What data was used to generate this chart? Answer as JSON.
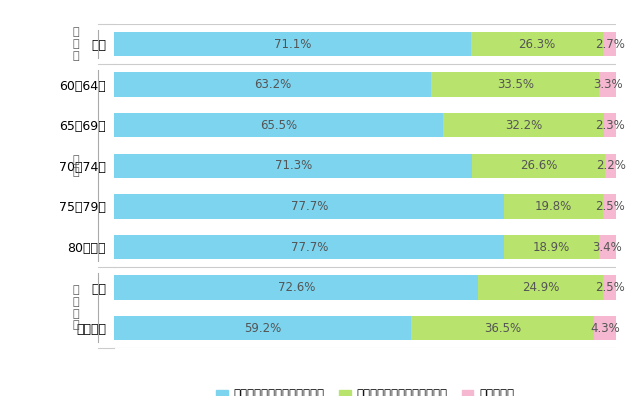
{
  "categories": [
    "全体",
    "60〖64歳",
    "65〖69歳",
    "70〖74歳",
    "75〖79歳",
    "80歳以上",
    "持家",
    "貳貸住宅"
  ],
  "values": [
    [
      71.1,
      26.3,
      2.7
    ],
    [
      63.2,
      33.5,
      3.3
    ],
    [
      65.5,
      32.2,
      2.3
    ],
    [
      71.3,
      26.6,
      2.2
    ],
    [
      77.7,
      19.8,
      2.5
    ],
    [
      77.7,
      18.9,
      3.4
    ],
    [
      72.6,
      24.9,
      2.5
    ],
    [
      59.2,
      36.5,
      4.3
    ]
  ],
  "colors": [
    "#7dd4ef",
    "#b8e46e",
    "#f5b8d0"
  ],
  "legend_labels": [
    "不安と感じていることはない",
    "不安と感じていることがある",
    "わからない"
  ],
  "section_groups": [
    {
      "label": "年\n齢\n計",
      "rows": [
        0
      ]
    },
    {
      "label": "年\n齢",
      "rows": [
        1,
        2,
        3,
        4,
        5
      ]
    },
    {
      "label": "住\n居\n形\n態",
      "rows": [
        6,
        7
      ]
    }
  ],
  "bar_height": 0.6,
  "label_fontsize": 8.5,
  "cat_fontsize": 9,
  "section_fontsize": 8,
  "background_color": "#ffffff"
}
